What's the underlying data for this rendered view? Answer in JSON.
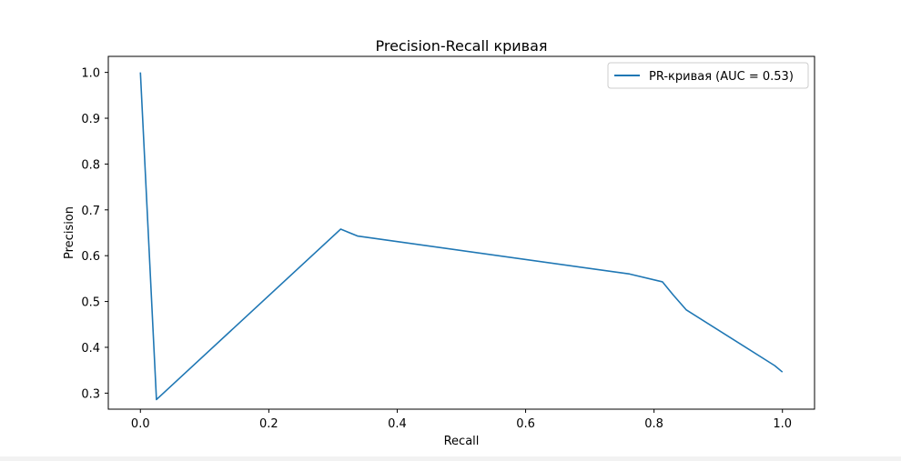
{
  "chart_data": {
    "type": "line",
    "title": "Precision-Recall кривая",
    "xlabel": "Recall",
    "ylabel": "Precision",
    "xlim": [
      -0.05,
      1.05
    ],
    "ylim": [
      0.265,
      1.035
    ],
    "xticks": [
      0.0,
      0.2,
      0.4,
      0.6,
      0.8,
      1.0
    ],
    "xtick_labels": [
      "0.0",
      "0.2",
      "0.4",
      "0.6",
      "0.8",
      "1.0"
    ],
    "yticks": [
      0.3,
      0.4,
      0.5,
      0.6,
      0.7,
      0.8,
      0.9,
      1.0
    ],
    "ytick_labels": [
      "0.3",
      "0.4",
      "0.5",
      "0.6",
      "0.7",
      "0.8",
      "0.9",
      "1.0"
    ],
    "grid": false,
    "legend_position": "top-right",
    "series": [
      {
        "name": "PR-кривая (AUC = 0.53)",
        "color": "#1f77b4",
        "x": [
          0.0,
          0.025,
          0.312,
          0.338,
          0.762,
          0.813,
          0.83,
          0.85,
          0.988,
          1.0
        ],
        "y": [
          1.0,
          0.286,
          0.658,
          0.643,
          0.56,
          0.543,
          0.514,
          0.482,
          0.36,
          0.346
        ]
      }
    ]
  }
}
